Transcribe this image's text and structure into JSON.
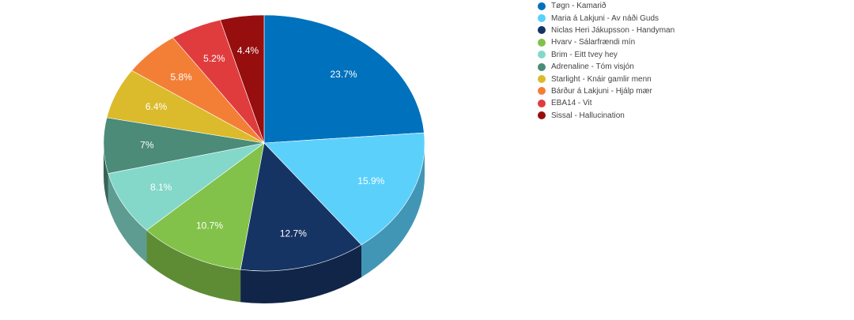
{
  "chart_data": {
    "type": "pie",
    "style": "3d",
    "legend_position": "top-right",
    "series": [
      {
        "name": "Tøgn - Kamarið",
        "value": 23.7,
        "label": "23.7%",
        "color": "#0071bc"
      },
      {
        "name": "Maria á Lakjuni - Av náði Guds",
        "value": 15.9,
        "label": "15.9%",
        "color": "#5bd0fb"
      },
      {
        "name": "Niclas Heri Jákupsson - Handyman",
        "value": 12.7,
        "label": "12.7%",
        "color": "#163463"
      },
      {
        "name": "Hvarv - Sálarfrændi mín",
        "value": 10.7,
        "label": "10.7%",
        "color": "#82c24a"
      },
      {
        "name": "Brim - Eitt tvey hey",
        "value": 8.1,
        "label": "8.1%",
        "color": "#83d8c9"
      },
      {
        "name": "Adrenaline - Tóm visjón",
        "value": 7,
        "label": "7%",
        "color": "#4b8b78"
      },
      {
        "name": "Starlight - Knáir gamlir menn",
        "value": 6.4,
        "label": "6.4%",
        "color": "#dbbb2c"
      },
      {
        "name": "Bárður á Lakjuni - Hjálp mær",
        "value": 5.8,
        "label": "5.8%",
        "color": "#f37f36"
      },
      {
        "name": "EBA14 - Vit",
        "value": 5.2,
        "label": "5.2%",
        "color": "#e03c3e"
      },
      {
        "name": "Sissal - Hallucination",
        "value": 4.4,
        "label": "4.4%",
        "color": "#960e0e"
      }
    ]
  }
}
